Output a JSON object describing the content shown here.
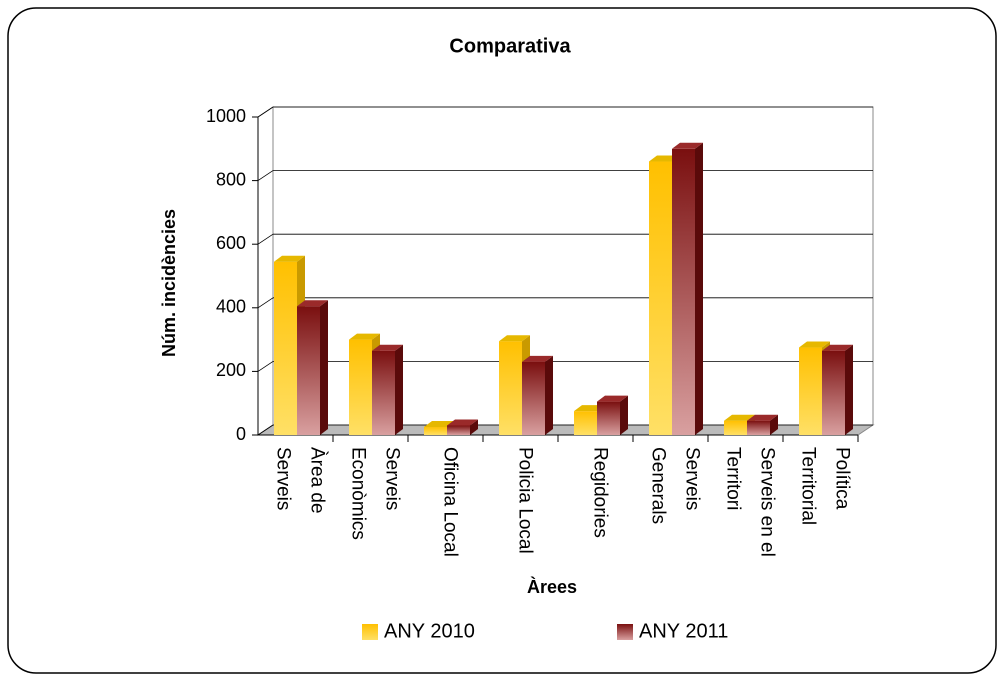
{
  "chart_data": {
    "type": "bar3d",
    "title": "Comparativa",
    "x_label": "Àrees",
    "y_label": "Núm. incidències",
    "categories": [
      "Àrea de Serveis",
      "Serveis Econòmics",
      "Oficina Local",
      "Policia Local",
      "Regidories",
      "Serveis Generals",
      "Serveis en el Territori",
      "Política Territorial"
    ],
    "series": [
      {
        "name": "ANY 2010",
        "color": "#ffcc00",
        "values": [
          545,
          300,
          25,
          295,
          75,
          860,
          45,
          275
        ]
      },
      {
        "name": "ANY 2011",
        "color": "#8b1a1a",
        "values": [
          405,
          265,
          30,
          230,
          105,
          900,
          45,
          265
        ]
      }
    ],
    "ylim": [
      0,
      1000
    ],
    "yticks": [
      0,
      200,
      400,
      600,
      800,
      1000
    ],
    "grid": true,
    "legend": "bottom"
  }
}
